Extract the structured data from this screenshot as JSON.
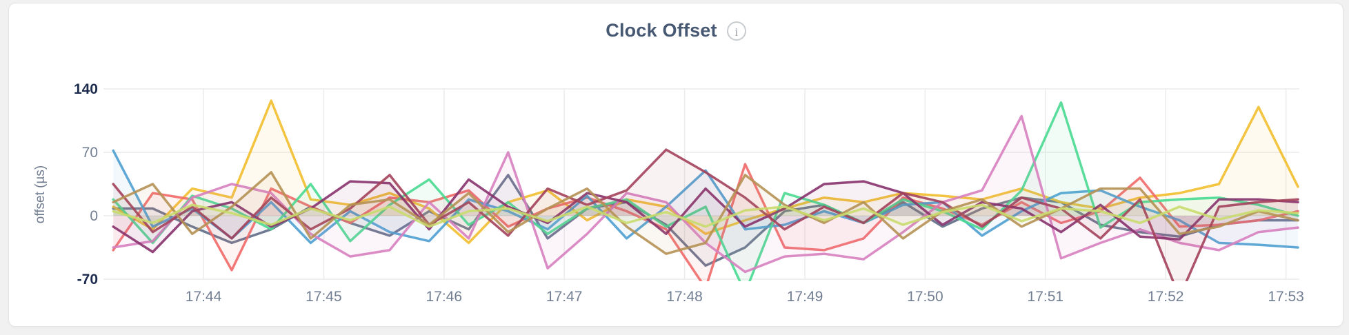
{
  "page": {
    "background": "#f1f1f2"
  },
  "header": {
    "title": "Clock Offset",
    "info_icon": "i"
  },
  "chart_data": {
    "type": "line",
    "title": "Clock Offset",
    "xlabel": "",
    "ylabel": "offset (µs)",
    "ylim": [
      -70,
      140
    ],
    "grid": true,
    "legend": "none",
    "x_start_min": 43.25,
    "x_end_min": 53.1,
    "x_unit": "time (17:MM)",
    "yticks": [
      {
        "value": 140,
        "label": "140",
        "emphasis": true
      },
      {
        "value": 70,
        "label": "70",
        "emphasis": false
      },
      {
        "value": 0,
        "label": "0",
        "emphasis": false
      },
      {
        "value": -70,
        "label": "-70",
        "emphasis": true
      }
    ],
    "xticks": [
      {
        "minute": 44,
        "label": "17:44"
      },
      {
        "minute": 45,
        "label": "17:45"
      },
      {
        "minute": 46,
        "label": "17:46"
      },
      {
        "minute": 47,
        "label": "17:47"
      },
      {
        "minute": 48,
        "label": "17:48"
      },
      {
        "minute": 49,
        "label": "17:49"
      },
      {
        "minute": 50,
        "label": "17:50"
      },
      {
        "minute": 51,
        "label": "17:51"
      },
      {
        "minute": 52,
        "label": "17:52"
      },
      {
        "minute": 53,
        "label": "17:53"
      }
    ],
    "series": [
      {
        "name": "slate",
        "color": "#5F6C87",
        "values": [
          8,
          8,
          -12,
          -30,
          -15,
          10,
          -8,
          -22,
          5,
          -15,
          45,
          -25,
          8,
          15,
          -10,
          -55,
          -35,
          5,
          12,
          -8,
          15,
          -12,
          8,
          20,
          15,
          -10,
          -18,
          -23,
          -10,
          -5,
          -5
        ]
      },
      {
        "name": "gold",
        "color": "#F2BE2C",
        "values": [
          10,
          -15,
          30,
          20,
          127,
          18,
          12,
          25,
          8,
          -30,
          15,
          28,
          -5,
          18,
          10,
          -20,
          -5,
          8,
          20,
          15,
          25,
          22,
          18,
          30,
          15,
          8,
          20,
          25,
          35,
          120,
          32
        ]
      },
      {
        "name": "coral",
        "color": "#F16969",
        "values": [
          -38,
          25,
          18,
          -60,
          30,
          10,
          -8,
          20,
          15,
          28,
          -12,
          8,
          20,
          5,
          -15,
          -80,
          57,
          -35,
          -38,
          -25,
          20,
          8,
          -10,
          15,
          -8,
          5,
          42,
          -12,
          -10,
          -5,
          5
        ]
      },
      {
        "name": "blue",
        "color": "#4E9FD1",
        "values": [
          72,
          -12,
          8,
          -25,
          15,
          -30,
          5,
          -18,
          -28,
          18,
          5,
          -15,
          22,
          -25,
          10,
          50,
          -15,
          -10,
          5,
          -8,
          12,
          15,
          -22,
          5,
          25,
          28,
          10,
          -5,
          -30,
          -32,
          -35
        ]
      },
      {
        "name": "green",
        "color": "#49D990",
        "values": [
          18,
          -30,
          22,
          8,
          -15,
          35,
          -28,
          12,
          40,
          -10,
          15,
          -20,
          8,
          18,
          -12,
          10,
          -85,
          25,
          12,
          -8,
          18,
          5,
          -15,
          28,
          125,
          -13,
          15,
          18,
          20,
          12,
          0
        ]
      },
      {
        "name": "orchid",
        "color": "#D77FBF",
        "values": [
          -35,
          -28,
          20,
          35,
          25,
          -20,
          -45,
          -38,
          15,
          -25,
          70,
          -58,
          -20,
          25,
          15,
          -30,
          -62,
          -45,
          -42,
          -48,
          -18,
          15,
          28,
          110,
          -47,
          -30,
          -15,
          -30,
          -38,
          -18,
          -13
        ]
      },
      {
        "name": "purple",
        "color": "#87326D",
        "values": [
          -12,
          -40,
          5,
          15,
          -12,
          8,
          38,
          36,
          -15,
          40,
          10,
          -8,
          25,
          15,
          -20,
          30,
          -12,
          8,
          35,
          38,
          25,
          -10,
          15,
          8,
          -18,
          12,
          -23,
          -26,
          18,
          18,
          15
        ]
      },
      {
        "name": "maroon",
        "color": "#A3415B",
        "values": [
          35,
          -18,
          10,
          -25,
          20,
          -15,
          8,
          45,
          -10,
          15,
          -22,
          30,
          12,
          28,
          73,
          48,
          20,
          -15,
          10,
          -8,
          25,
          15,
          -12,
          20,
          8,
          -25,
          18,
          -90,
          10,
          15,
          18
        ]
      },
      {
        "name": "tan",
        "color": "#B59153",
        "values": [
          15,
          35,
          -20,
          10,
          48,
          -25,
          12,
          18,
          -10,
          25,
          -18,
          8,
          30,
          -12,
          -42,
          -30,
          45,
          12,
          -8,
          15,
          -25,
          5,
          18,
          -12,
          8,
          30,
          30,
          -20,
          -12,
          5,
          -5
        ]
      },
      {
        "name": "lime",
        "color": "#C9DB6D",
        "values": [
          5,
          -8,
          12,
          3,
          -10,
          8,
          -5,
          10,
          -12,
          5,
          8,
          -6,
          10,
          -8,
          4,
          -12,
          6,
          10,
          -5,
          8,
          -10,
          4,
          12,
          -6,
          8,
          5,
          -8,
          10,
          -4,
          6,
          3
        ]
      }
    ],
    "style": {
      "grid_color": "#ececec",
      "tick_label_color": "#717d91",
      "tick_label_emphasis_color": "#1d2c4e",
      "axis_title_color": "#717d91",
      "stroke_width": 3.5,
      "fill_opacity": 0.07
    }
  }
}
